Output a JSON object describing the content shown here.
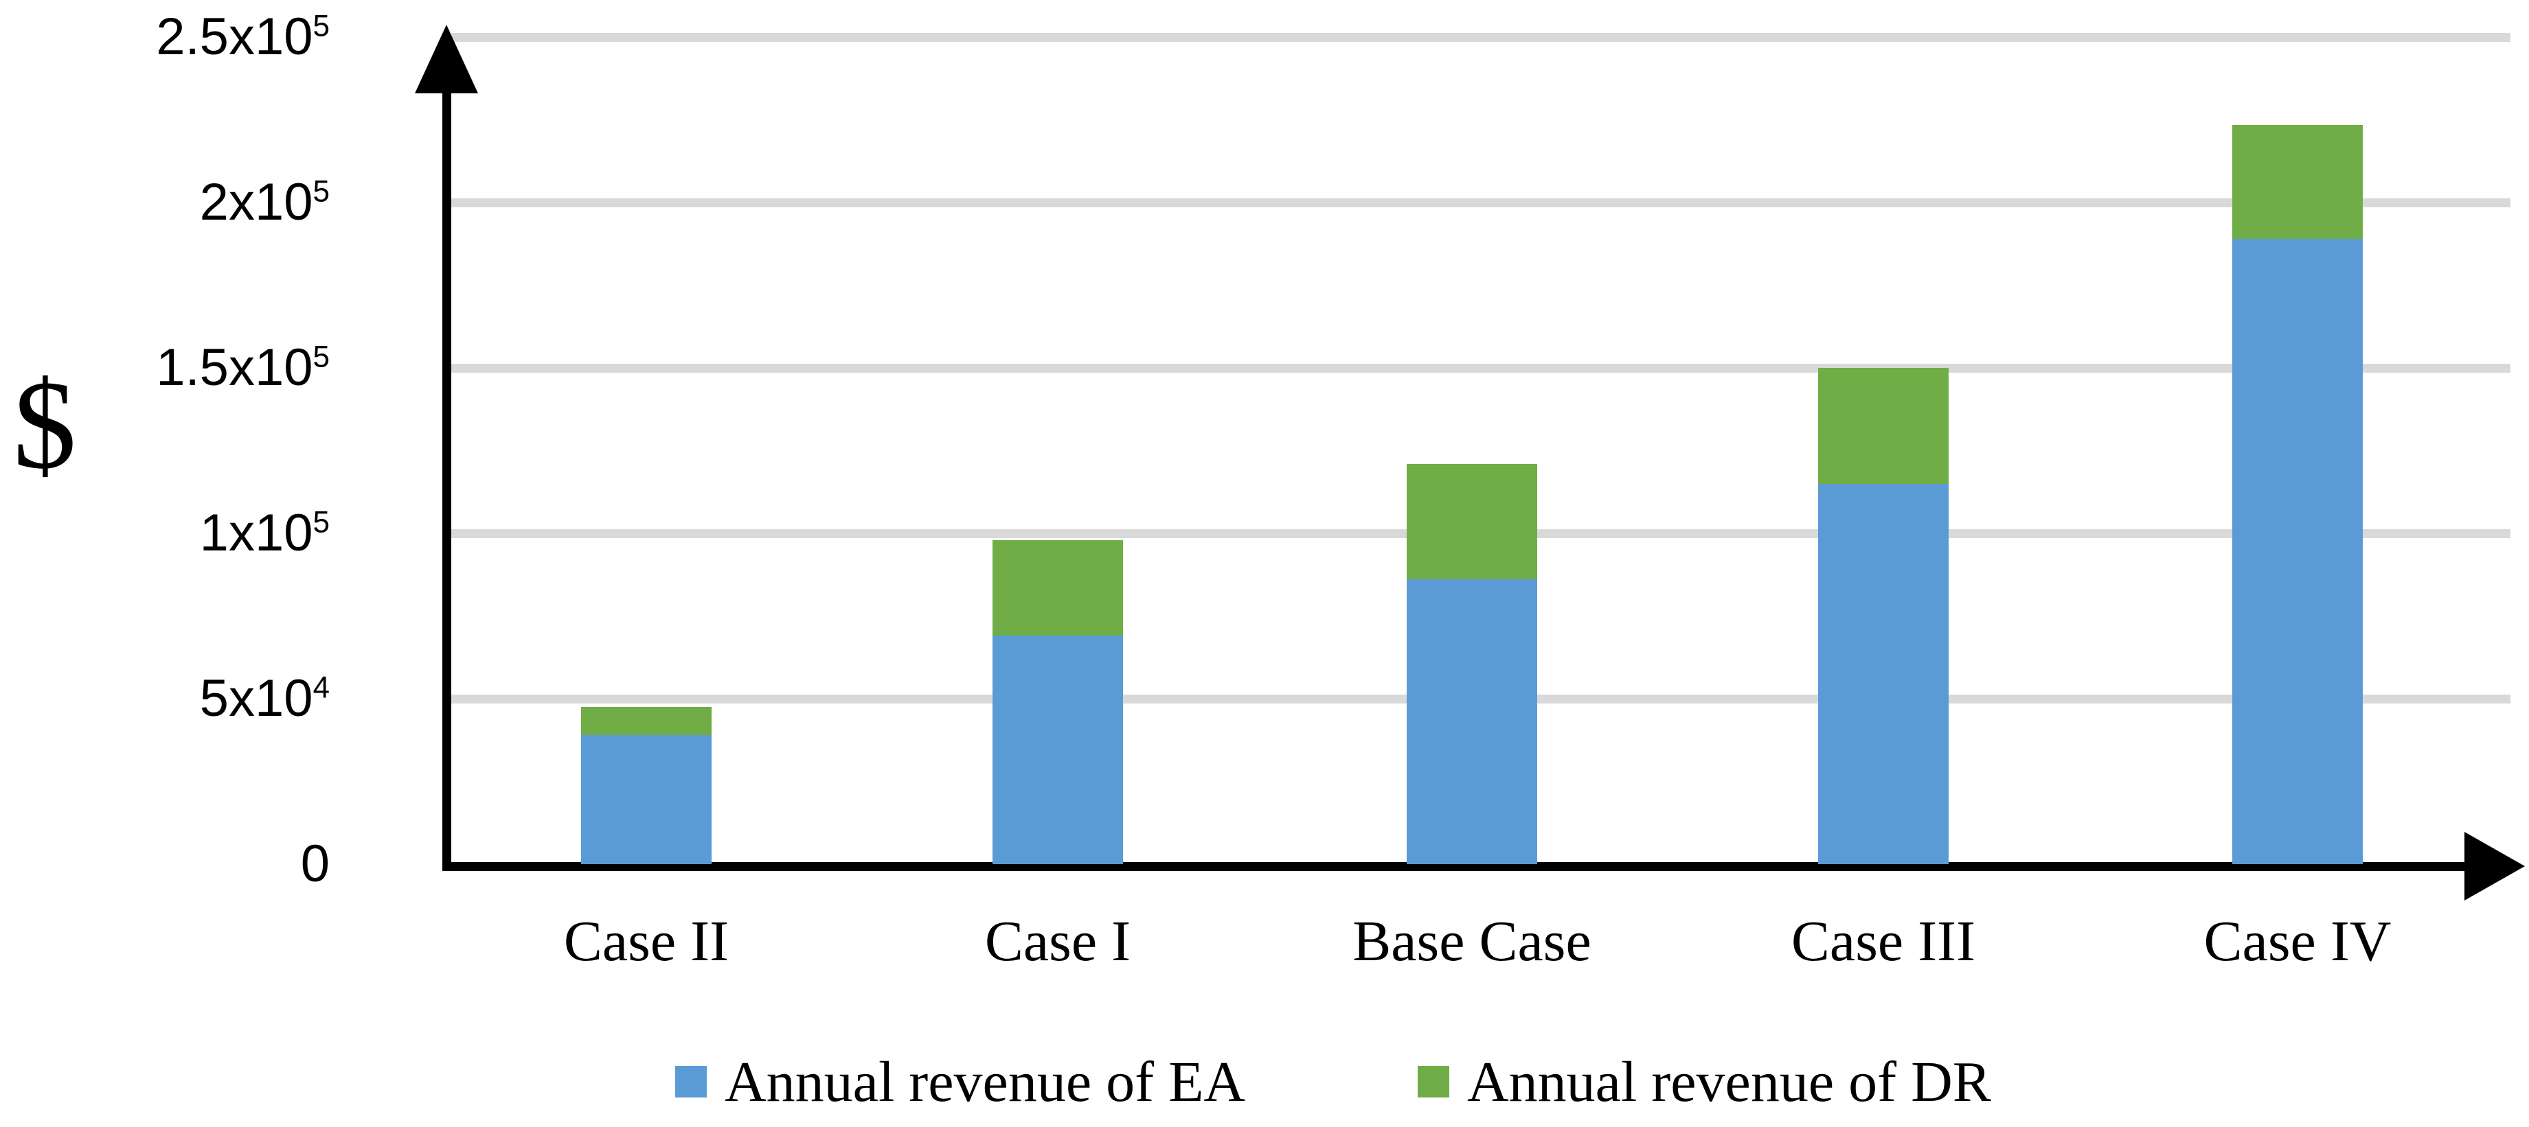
{
  "chart_data": {
    "type": "bar",
    "stacked": true,
    "title": "",
    "xlabel": "",
    "ylabel": "$",
    "categories": [
      "Case II",
      "Case I",
      "Base Case",
      "Case III",
      "Case IV"
    ],
    "series": [
      {
        "name": "Annual revenue of EA",
        "color": "#5B9BD5",
        "values": [
          39000,
          69000,
          86000,
          115000,
          189000
        ]
      },
      {
        "name": "Annual revenue of DR",
        "color": "#70AD47",
        "values": [
          8500,
          29000,
          35000,
          35000,
          34500
        ]
      }
    ],
    "stack_totals": [
      47500,
      98000,
      121000,
      150000,
      223500
    ],
    "ylim": [
      0,
      250000
    ],
    "ytick_interval": 50000,
    "yticks": [
      {
        "base": "0",
        "sup": "",
        "value": 0
      },
      {
        "base": "5x10",
        "sup": "4",
        "value": 50000
      },
      {
        "base": "1x10",
        "sup": "5",
        "value": 100000
      },
      {
        "base": "1.5x10",
        "sup": "5",
        "value": 150000
      },
      {
        "base": "2x10",
        "sup": "5",
        "value": 200000
      },
      {
        "base": "2.5x10",
        "sup": "5",
        "value": 250000
      }
    ],
    "grid": "horizontal-only",
    "gridline_color": "#D9D9D9",
    "axis_color": "#000000",
    "legend_position": "bottom"
  },
  "legend": {
    "items": [
      {
        "label": "Annual revenue of EA",
        "color": "#5B9BD5"
      },
      {
        "label": "Annual revenue of DR",
        "color": "#70AD47"
      }
    ]
  },
  "y_axis_title": "$"
}
